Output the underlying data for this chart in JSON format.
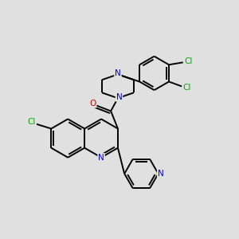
{
  "background_color": "#e0e0e0",
  "bond_color": "#000000",
  "bond_width": 1.4,
  "atom_colors": {
    "N": "#0000cc",
    "O": "#cc0000",
    "Cl": "#00aa00"
  },
  "font_size": 7.5
}
